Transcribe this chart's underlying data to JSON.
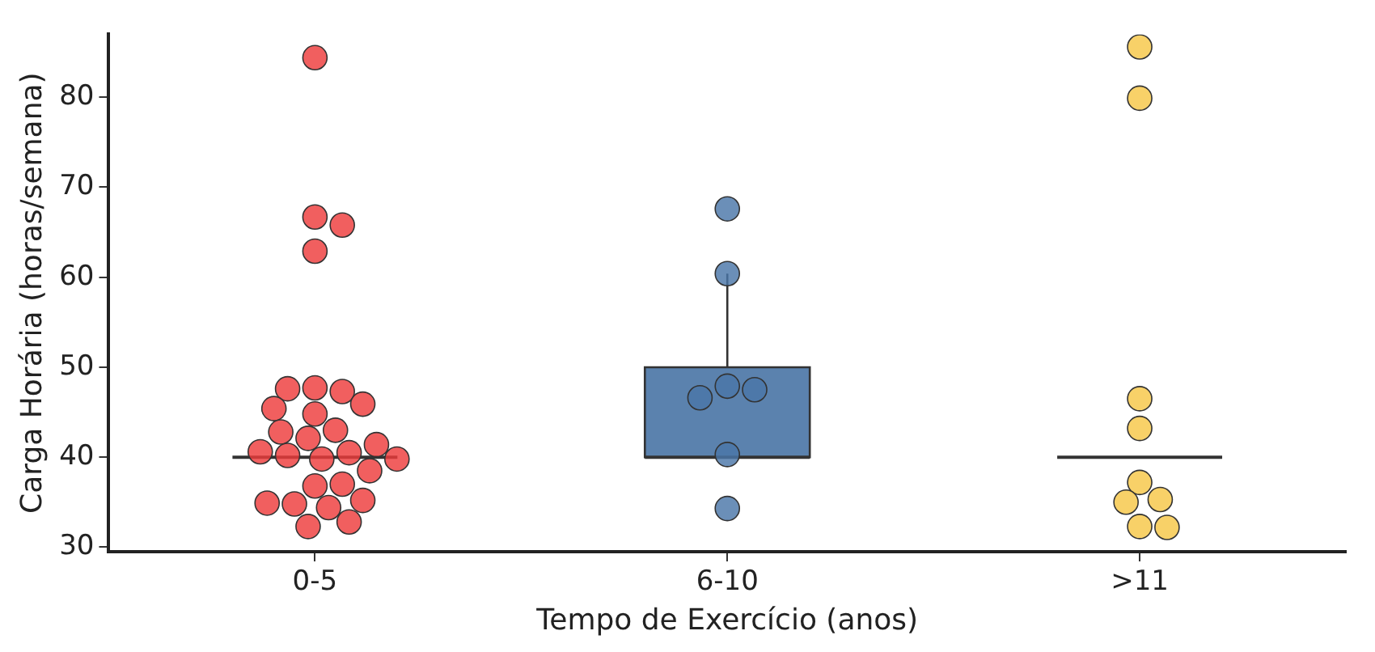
{
  "chart_data": {
    "type": "box",
    "xlabel": "Tempo de Exercício (anos)",
    "ylabel": "Carga Horária (horas/semana)",
    "categories": [
      "0-5",
      "6-10",
      ">11"
    ],
    "boxes": [
      {
        "low": 40,
        "q1": 40,
        "median": 40,
        "q3": 40,
        "high": 40
      },
      {
        "low": 40,
        "q1": 40,
        "median": 40,
        "q3": 50,
        "high": 60.4
      },
      {
        "low": 40,
        "q1": 40,
        "median": 40,
        "q3": 40,
        "high": 40
      }
    ],
    "colors": [
      null,
      "#5b82ae",
      null
    ],
    "series": [
      {
        "type": "scatter",
        "color": "#ee3b3b",
        "x": [
          "0-5",
          "0-5",
          "0-5",
          "0-5",
          "0-5",
          "0-5",
          "0-5",
          "0-5",
          "0-5",
          "0-5",
          "0-5",
          "0-5",
          "0-5",
          "0-5",
          "0-5",
          "0-5",
          "0-5",
          "0-5",
          "0-5",
          "0-5",
          "0-5",
          "0-5",
          "0-5",
          "0-5",
          "0-5",
          "0-5",
          "0-5",
          "0-5"
        ],
        "values": [
          84.4,
          66.7,
          65.8,
          62.9,
          47.7,
          47.3,
          47.6,
          45.9,
          44.8,
          45.4,
          43,
          42.1,
          42.8,
          40.5,
          40.2,
          40.6,
          41.4,
          39.8,
          39.8,
          38.5,
          36.8,
          37,
          34.4,
          34.8,
          35.2,
          34.9,
          32.8,
          32.3
        ]
      },
      {
        "type": "scatter",
        "color": "#4a76a8",
        "x": [
          "6-10",
          "6-10",
          "6-10",
          "6-10",
          "6-10",
          "6-10",
          "6-10"
        ],
        "values": [
          67.6,
          60.4,
          47.9,
          47.5,
          46.6,
          40.3,
          34.3
        ]
      },
      {
        "type": "scatter",
        "color": "#f7c646",
        "x": [
          ">11",
          ">11",
          ">11",
          ">11",
          ">11",
          ">11",
          ">11",
          ">11",
          ">11"
        ],
        "values": [
          85.6,
          79.9,
          46.5,
          43.2,
          37.2,
          35.3,
          35,
          32.3,
          32.2
        ]
      }
    ],
    "ylim": [
      29.5,
      87
    ],
    "yticks": [
      30,
      40,
      50,
      60,
      70,
      80
    ],
    "grid": false,
    "legend": false,
    "marker": "circle"
  }
}
